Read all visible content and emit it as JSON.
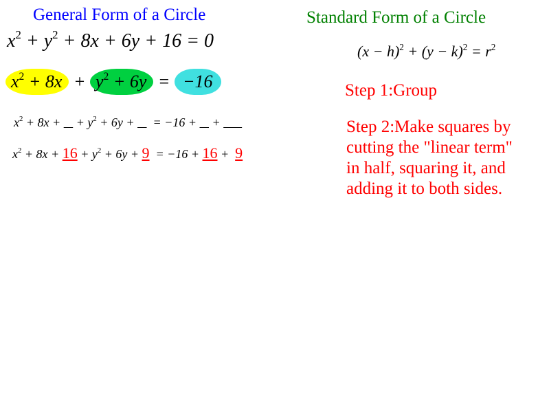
{
  "titles": {
    "left": "General Form of a Circle",
    "right": "Standard Form of a Circle"
  },
  "equations": {
    "general": "x² + y² + 8x + 6y + 16 = 0",
    "grouped": {
      "part1": "x² + 8x",
      "part2": "y² + 6y",
      "rhs": "−16",
      "plus": "+",
      "eq": "="
    },
    "blanks_line": "x² + 8x + __ + y² + 6y + __  = −16 + __ + ____",
    "filled_line": {
      "pre1": "x² + 8x +",
      "val1": "16",
      "mid": "+ y² + 6y +",
      "val2": "9",
      "rhs_pre": "  = −16 +",
      "val3": "16",
      "plus": "+",
      "val4": "9"
    },
    "standard": "(x − h)² + (y − k)² = r²"
  },
  "steps": {
    "s1": "Step 1:Group",
    "s2": "Step 2:Make squares by cutting the \"linear term\" in half, squaring it, and adding it to both sides."
  },
  "colors": {
    "title_left": "#0000ff",
    "title_right": "#008000",
    "step_text": "#ff0000",
    "highlight_yellow": "#ffff00",
    "highlight_green": "#00d040",
    "highlight_cyan": "#40e0e0",
    "fill_values": "#ff0000",
    "text": "#000000",
    "background": "#ffffff"
  },
  "fonts": {
    "title_size": 25,
    "eq_large": 28,
    "eq_med": 26,
    "eq_small": 18,
    "standard_eq": 22,
    "step_size": 25,
    "family": "Times New Roman"
  }
}
